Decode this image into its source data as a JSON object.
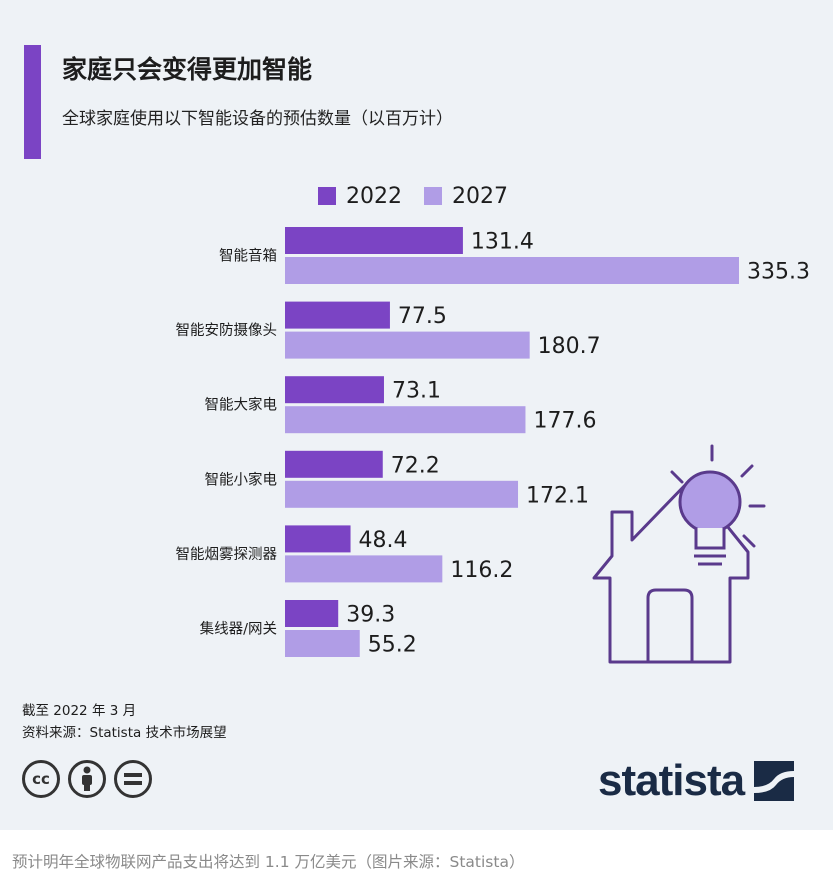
{
  "header": {
    "title": "家庭只会变得更加智能",
    "subtitle": "全球家庭使用以下智能设备的预估数量（以百万计）"
  },
  "chart_data": {
    "type": "bar",
    "orientation": "horizontal",
    "categories": [
      "智能音箱",
      "智能安防摄像头",
      "智能大家电",
      "智能小家电",
      "智能烟雾探测器",
      "集线器/网关"
    ],
    "series": [
      {
        "name": "2022",
        "values": [
          131.4,
          77.5,
          73.1,
          72.2,
          48.4,
          39.3
        ],
        "color": "#7b44c4"
      },
      {
        "name": "2027",
        "values": [
          335.3,
          180.7,
          177.6,
          172.1,
          116.2,
          55.2
        ],
        "color": "#b09de6"
      }
    ],
    "xlim": [
      0,
      335.3
    ],
    "grid": false,
    "legend_position": "top",
    "data_labels": true
  },
  "footer": {
    "note": "截至 2022 年 3 月",
    "source": "资料来源：Statista 技术市场展望",
    "brand": "statista",
    "cc_icons": [
      "cc-icon",
      "attribution-icon",
      "no-derivatives-icon"
    ]
  },
  "caption": "预计明年全球物联网产品支出将达到 1.1 万亿美元（图片来源：Statista）",
  "colors": {
    "accent": "#7b44c4",
    "series_2022": "#7b44c4",
    "series_2027": "#b09de6",
    "background": "#eef2f6",
    "brand": "#1a2b45"
  }
}
